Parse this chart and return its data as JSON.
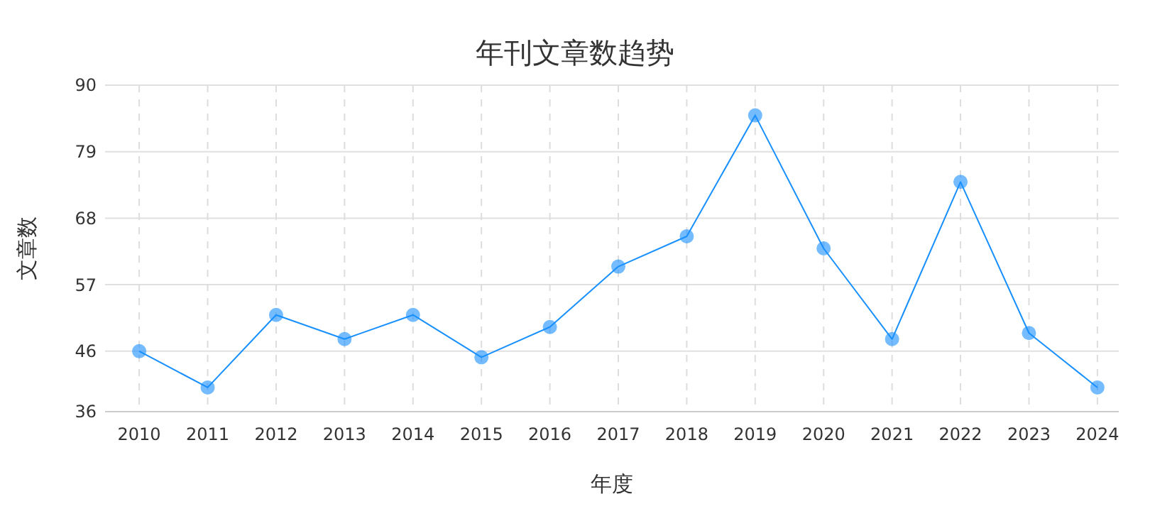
{
  "chart_data": {
    "type": "line",
    "title": "年刊文章数趋势",
    "xlabel": "年度",
    "ylabel": "文章数",
    "categories": [
      "2010",
      "2011",
      "2012",
      "2013",
      "2014",
      "2015",
      "2016",
      "2017",
      "2018",
      "2019",
      "2020",
      "2021",
      "2022",
      "2023",
      "2024"
    ],
    "series": [
      {
        "color": "#1890ff",
        "values": [
          46,
          40,
          52,
          48,
          52,
          45,
          50,
          60,
          65,
          85,
          63,
          48,
          74,
          49,
          40
        ]
      }
    ],
    "ylim": [
      36,
      90
    ],
    "yticks": [
      36,
      46,
      57,
      68,
      79,
      90
    ],
    "grid": true,
    "marker": "circle"
  }
}
